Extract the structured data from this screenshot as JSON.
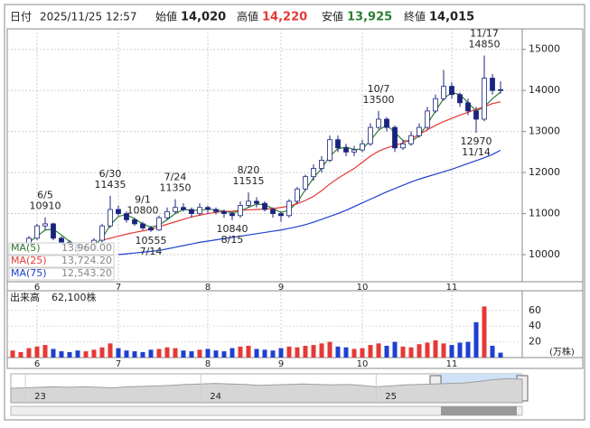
{
  "header": {
    "date_label": "日付",
    "date": "2025/11/25 12:57",
    "items": [
      {
        "label": "始値",
        "value": "14,020"
      },
      {
        "label": "高値",
        "value": "14,220"
      },
      {
        "label": "安値",
        "value": "13,925"
      },
      {
        "label": "終値",
        "value": "14,015"
      }
    ]
  },
  "chart_data": {
    "type": "candlestick",
    "categories": [
      null,
      null,
      null,
      "6",
      null,
      null,
      null,
      null,
      null,
      null,
      null,
      null,
      null,
      "7",
      null,
      null,
      null,
      null,
      null,
      null,
      null,
      null,
      null,
      null,
      "8",
      null,
      null,
      null,
      null,
      null,
      null,
      null,
      null,
      "9",
      null,
      null,
      null,
      null,
      null,
      null,
      null,
      null,
      null,
      "10",
      null,
      null,
      null,
      null,
      null,
      null,
      null,
      null,
      null,
      null,
      "11",
      null,
      null,
      null,
      null,
      null,
      null
    ],
    "open": [
      10150,
      10200,
      10250,
      10400,
      10700,
      10750,
      10400,
      10300,
      10250,
      10150,
      10150,
      10350,
      10700,
      11100,
      11000,
      10850,
      10750,
      10650,
      10600,
      10900,
      11050,
      11150,
      11100,
      11000,
      11150,
      11100,
      11050,
      11000,
      10950,
      11200,
      11300,
      11250,
      11100,
      11000,
      10950,
      11300,
      11600,
      11900,
      12100,
      12300,
      12800,
      12600,
      12500,
      12550,
      12700,
      13100,
      13300,
      13100,
      12600,
      12700,
      12900,
      13100,
      13500,
      13800,
      14100,
      13900,
      13700,
      13500,
      13300,
      14300,
      14020
    ],
    "high": [
      10280,
      10300,
      10450,
      10750,
      10910,
      10780,
      10450,
      10350,
      10280,
      10250,
      10400,
      10750,
      11435,
      11200,
      11050,
      10900,
      10800,
      10700,
      10950,
      11150,
      11350,
      11250,
      11150,
      11250,
      11200,
      11150,
      11100,
      11050,
      11300,
      11515,
      11400,
      11300,
      11150,
      11050,
      11350,
      11650,
      11950,
      12200,
      12400,
      12900,
      12900,
      12700,
      12650,
      12800,
      13200,
      13500,
      13350,
      13150,
      12800,
      13000,
      13200,
      13600,
      13900,
      14500,
      14200,
      13950,
      13800,
      13600,
      14850,
      14400,
      14220
    ],
    "low": [
      10100,
      10150,
      10200,
      10350,
      10600,
      10350,
      10250,
      10150,
      9980,
      10050,
      10100,
      10300,
      10650,
      10950,
      10780,
      10700,
      10600,
      10555,
      10580,
      10850,
      11000,
      11050,
      10900,
      10950,
      11000,
      10980,
      10900,
      10840,
      10900,
      11150,
      11150,
      11050,
      10900,
      10800,
      10900,
      11250,
      11550,
      11800,
      12000,
      12250,
      12500,
      12400,
      12400,
      12500,
      12650,
      13050,
      13000,
      12500,
      12550,
      12650,
      12850,
      13050,
      13450,
      13750,
      13800,
      13600,
      13400,
      12970,
      13250,
      13900,
      13925
    ],
    "close": [
      10200,
      10250,
      10400,
      10700,
      10750,
      10400,
      10300,
      10250,
      10150,
      10150,
      10350,
      10700,
      11100,
      11000,
      10850,
      10750,
      10650,
      10600,
      10900,
      11050,
      11150,
      11100,
      11000,
      11150,
      11100,
      11050,
      11000,
      10950,
      11200,
      11300,
      11250,
      11100,
      11000,
      10950,
      11300,
      11600,
      11900,
      12100,
      12300,
      12800,
      12600,
      12500,
      12550,
      12700,
      13100,
      13300,
      13100,
      12600,
      12700,
      12900,
      13100,
      13500,
      13800,
      14100,
      13900,
      13700,
      13500,
      13300,
      14300,
      14000,
      14015
    ],
    "up_color": "#ffffff",
    "down_color": "#1a237e",
    "edge_color": "#1a237e",
    "ylim": [
      9340,
      15500
    ],
    "yticks": [
      10000,
      11000,
      12000,
      13000,
      14000,
      15000
    ],
    "grid": true,
    "series": [
      {
        "name": "MA(5)",
        "value": "13,960.00",
        "color": "#2e7d32",
        "values": [
          null,
          null,
          10300,
          10450,
          10600,
          10620,
          10480,
          10320,
          10230,
          10180,
          10220,
          10400,
          10720,
          10930,
          10980,
          10870,
          10750,
          10670,
          10720,
          10850,
          11000,
          11100,
          11080,
          11080,
          11110,
          11090,
          11060,
          11020,
          11060,
          11150,
          11230,
          11220,
          11120,
          11030,
          11080,
          11280,
          11580,
          11870,
          12100,
          12400,
          12580,
          12620,
          12560,
          12570,
          12780,
          13030,
          13160,
          12980,
          12780,
          12750,
          12900,
          13180,
          13500,
          13800,
          13950,
          13900,
          13700,
          13500,
          13600,
          13800,
          13960
        ]
      },
      {
        "name": "MA(25)",
        "value": "13,724.20",
        "color": "#e53935",
        "values": [
          null,
          null,
          null,
          null,
          null,
          null,
          null,
          null,
          null,
          null,
          null,
          10350,
          10400,
          10450,
          10500,
          10540,
          10580,
          10620,
          10680,
          10740,
          10800,
          10860,
          10920,
          10960,
          11000,
          11030,
          11050,
          11060,
          11080,
          11090,
          11100,
          11110,
          11120,
          11150,
          11180,
          11240,
          11320,
          11420,
          11560,
          11720,
          11860,
          11980,
          12100,
          12250,
          12400,
          12520,
          12600,
          12660,
          12720,
          12820,
          12930,
          13040,
          13150,
          13240,
          13320,
          13400,
          13470,
          13540,
          13600,
          13680,
          13724.2
        ]
      },
      {
        "name": "MA(75)",
        "value": "12,543.20",
        "color": "#1e40d0",
        "values": [
          null,
          null,
          null,
          null,
          null,
          null,
          null,
          null,
          null,
          null,
          null,
          null,
          null,
          10000,
          10020,
          10040,
          10060,
          10080,
          10100,
          10140,
          10180,
          10220,
          10260,
          10300,
          10330,
          10360,
          10390,
          10420,
          10450,
          10480,
          10510,
          10540,
          10570,
          10600,
          10640,
          10680,
          10730,
          10790,
          10860,
          10930,
          11000,
          11080,
          11170,
          11260,
          11350,
          11440,
          11530,
          11610,
          11690,
          11770,
          11840,
          11900,
          11960,
          12020,
          12080,
          12150,
          12220,
          12290,
          12360,
          12440,
          12543.2
        ]
      }
    ],
    "annotations": [
      {
        "date": "6/5",
        "value": 10910
      },
      {
        "date": "6/30",
        "value": 11435
      },
      {
        "date": "7/14",
        "value": 10555
      },
      {
        "date": "7/24",
        "value": 11350
      },
      {
        "date": "8/15",
        "value": 10840
      },
      {
        "date": "8/20",
        "value": 11515
      },
      {
        "date": "9/1",
        "value": 10800
      },
      {
        "date": "10/7",
        "value": 13500
      },
      {
        "date": "11/17",
        "value": 14850
      },
      {
        "date": "11/14",
        "value": 12970
      }
    ],
    "volume": {
      "title": "出来高",
      "value": "62,100株",
      "unit": "(万株)",
      "values": [
        9,
        7,
        12,
        14,
        16,
        11,
        8,
        7,
        9,
        8,
        10,
        13,
        18,
        12,
        9,
        8,
        7,
        10,
        11,
        13,
        12,
        9,
        8,
        10,
        11,
        9,
        8,
        12,
        14,
        15,
        11,
        10,
        9,
        12,
        14,
        13,
        15,
        16,
        18,
        20,
        14,
        13,
        11,
        12,
        16,
        18,
        15,
        20,
        14,
        13,
        17,
        19,
        22,
        18,
        16,
        19,
        20,
        45,
        65,
        15,
        6.21
      ],
      "up_color": "#e53935",
      "down_color": "#1e40d0",
      "ylim": [
        0,
        85
      ],
      "yticks": [
        20,
        40,
        60
      ]
    },
    "navigator": {
      "categories": [
        null,
        "23",
        null,
        null,
        null,
        null,
        null,
        null,
        null,
        null,
        null,
        null,
        null,
        "24",
        null,
        null,
        null,
        null,
        null,
        null,
        null,
        null,
        null,
        null,
        null,
        "25",
        null,
        null,
        null,
        null,
        null,
        null,
        null,
        null,
        null,
        null
      ],
      "values": [
        30,
        31,
        32,
        33,
        32,
        33,
        32,
        31,
        33,
        34,
        35,
        36,
        38,
        39,
        40,
        39,
        38,
        36,
        37,
        38,
        39,
        38,
        37,
        38,
        36,
        33,
        35,
        37,
        38,
        39,
        40,
        41,
        44,
        48,
        50,
        49
      ],
      "ylim": [
        0,
        60
      ],
      "color": "#9e9e9e"
    }
  }
}
